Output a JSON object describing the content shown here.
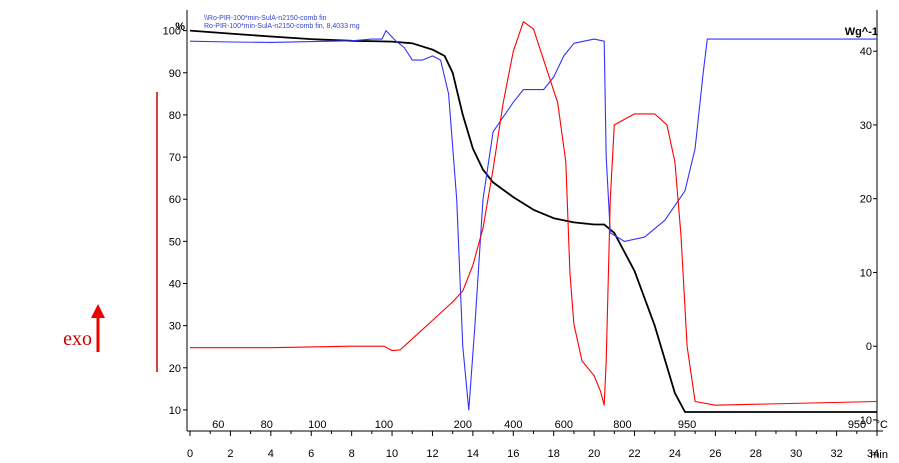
{
  "chart_data": {
    "type": "line",
    "header_lines": [
      "\\\\Ro-PIR-100*min-SulA-n2150-comb fin",
      "Ro-PIR-100*min-SulA-n2150-comb fin, 8,4033 mg"
    ],
    "left_axis": {
      "unit": "%",
      "range": [
        5,
        103
      ],
      "ticks": [
        10,
        20,
        30,
        40,
        50,
        60,
        70,
        80,
        90,
        100
      ]
    },
    "right_axis": {
      "unit": "Wg^-1",
      "range": [
        -11.5,
        44.5
      ],
      "ticks": [
        -10,
        0,
        10,
        20,
        30,
        40
      ]
    },
    "time_axis": {
      "unit": "min",
      "range": [
        0,
        34
      ],
      "ticks": [
        0,
        2,
        4,
        6,
        8,
        10,
        12,
        14,
        16,
        18,
        20,
        22,
        24,
        26,
        28,
        30,
        32,
        34
      ]
    },
    "temperature_labels": [
      {
        "time": 1.4,
        "text": "60"
      },
      {
        "time": 3.8,
        "text": "80"
      },
      {
        "time": 6.3,
        "text": "100"
      },
      {
        "time": 9.6,
        "text": "100"
      },
      {
        "time": 13.5,
        "text": "200"
      },
      {
        "time": 16.0,
        "text": "400"
      },
      {
        "time": 18.5,
        "text": "600"
      },
      {
        "time": 21.4,
        "text": "800"
      },
      {
        "time": 24.6,
        "text": "950"
      },
      {
        "time": 35.0,
        "text": "950"
      }
    ],
    "temperature_unit": "°C",
    "exo_label": "exo",
    "gridlines": false,
    "series": [
      {
        "axis": "left",
        "color": "#000000",
        "points": [
          [
            0,
            100
          ],
          [
            2,
            99.3
          ],
          [
            4,
            98.6
          ],
          [
            6,
            98
          ],
          [
            8,
            97.6
          ],
          [
            10,
            97.4
          ],
          [
            11,
            97
          ],
          [
            12,
            95.5
          ],
          [
            12.6,
            94
          ],
          [
            13,
            90
          ],
          [
            13.5,
            80
          ],
          [
            14,
            72
          ],
          [
            14.5,
            67
          ],
          [
            15,
            64
          ],
          [
            16,
            60.5
          ],
          [
            17,
            57.5
          ],
          [
            18,
            55.5
          ],
          [
            19,
            54.5
          ],
          [
            20,
            54
          ],
          [
            20.5,
            54
          ],
          [
            21,
            52
          ],
          [
            22,
            43
          ],
          [
            23,
            30
          ],
          [
            24,
            14
          ],
          [
            24.5,
            9.5
          ],
          [
            26,
            9.5
          ],
          [
            34,
            9.5
          ]
        ]
      },
      {
        "axis": "left",
        "color": "#3333ff",
        "points": [
          [
            0,
            97.5
          ],
          [
            2,
            97.3
          ],
          [
            4,
            97.2
          ],
          [
            6,
            97.4
          ],
          [
            8,
            97.6
          ],
          [
            9,
            98
          ],
          [
            9.5,
            98
          ],
          [
            9.7,
            100
          ],
          [
            10.2,
            97.5
          ],
          [
            10.6,
            96
          ],
          [
            11,
            93
          ],
          [
            11.5,
            93
          ],
          [
            12,
            94
          ],
          [
            12.4,
            93
          ],
          [
            12.8,
            85
          ],
          [
            13.2,
            60
          ],
          [
            13.5,
            25
          ],
          [
            13.8,
            10
          ],
          [
            14.1,
            30
          ],
          [
            14.5,
            60
          ],
          [
            15,
            76
          ],
          [
            16,
            83
          ],
          [
            16.5,
            86
          ],
          [
            17.5,
            86
          ],
          [
            18,
            89
          ],
          [
            18.5,
            94
          ],
          [
            19,
            97
          ],
          [
            20,
            98
          ],
          [
            20.5,
            97.5
          ],
          [
            20.6,
            70
          ],
          [
            20.8,
            52
          ],
          [
            21.5,
            50
          ],
          [
            22.5,
            51
          ],
          [
            23.5,
            55
          ],
          [
            24.5,
            62
          ],
          [
            25,
            72
          ],
          [
            25.4,
            90
          ],
          [
            25.6,
            98
          ],
          [
            26,
            98
          ],
          [
            34,
            98
          ]
        ]
      },
      {
        "axis": "right",
        "color": "#ff0000",
        "points": [
          [
            0,
            -0.2
          ],
          [
            2,
            -0.2
          ],
          [
            4,
            -0.2
          ],
          [
            6,
            -0.1
          ],
          [
            8,
            0
          ],
          [
            9,
            0
          ],
          [
            9.6,
            0
          ],
          [
            10,
            -0.6
          ],
          [
            10.4,
            -0.5
          ],
          [
            11,
            1
          ],
          [
            12,
            3.5
          ],
          [
            13,
            6
          ],
          [
            13.5,
            7.5
          ],
          [
            14,
            11
          ],
          [
            14.5,
            16
          ],
          [
            15,
            24
          ],
          [
            15.5,
            33
          ],
          [
            16,
            40
          ],
          [
            16.5,
            44
          ],
          [
            17,
            43
          ],
          [
            17.6,
            38
          ],
          [
            18.2,
            33
          ],
          [
            18.6,
            25
          ],
          [
            18.8,
            10
          ],
          [
            19,
            3
          ],
          [
            19.4,
            -2
          ],
          [
            20,
            -4
          ],
          [
            20.3,
            -6
          ],
          [
            20.5,
            -8
          ],
          [
            20.6,
            -2
          ],
          [
            20.8,
            20
          ],
          [
            21,
            30
          ],
          [
            22,
            31.5
          ],
          [
            23,
            31.5
          ],
          [
            23.6,
            30
          ],
          [
            24,
            25
          ],
          [
            24.3,
            15
          ],
          [
            24.6,
            0
          ],
          [
            25,
            -7.5
          ],
          [
            26,
            -8
          ],
          [
            34,
            -7.5
          ]
        ]
      }
    ]
  }
}
